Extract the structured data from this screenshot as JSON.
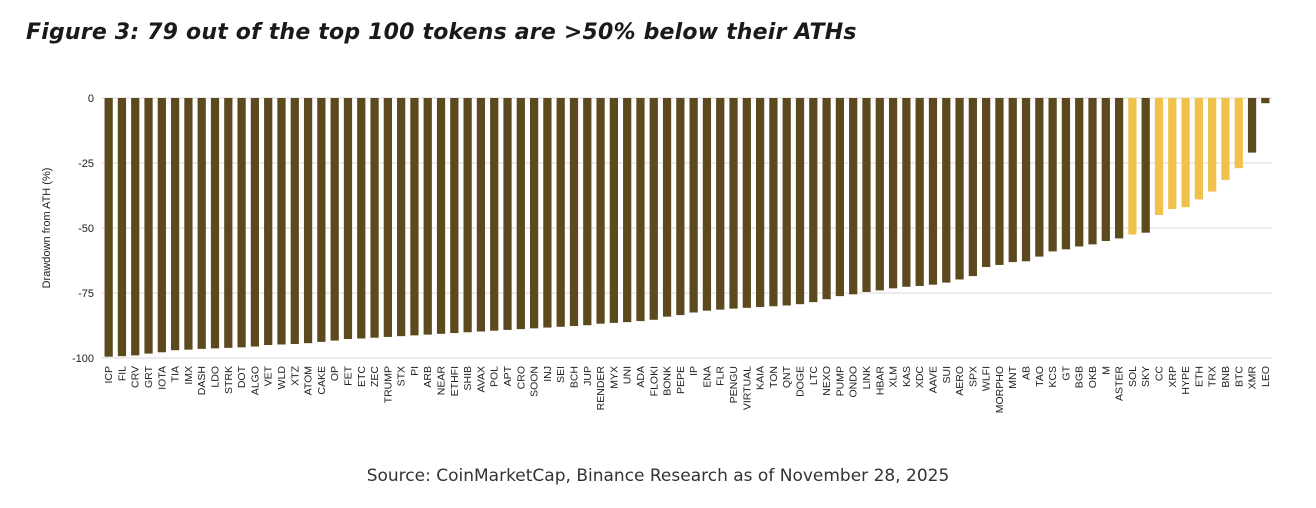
{
  "figure": {
    "title": "Figure 3: 79 out of the top 100 tokens are >50% below their ATHs",
    "source": "Source: CoinMarketCap, Binance Research as of November 28, 2025"
  },
  "colors": {
    "below_50": "#5c4a1e",
    "above_50": "#f0c24b",
    "grid": "#d9d9d9",
    "background": "#ffffff"
  },
  "chart_data": {
    "type": "bar",
    "title": "",
    "xlabel": "",
    "ylabel": "Drawdown from ATH (%)",
    "ylim": [
      -100,
      0
    ],
    "yticks": [
      0,
      -25,
      -50,
      -75,
      -100
    ],
    "grid": true,
    "categories": [
      "ICP",
      "FIL",
      "CRV",
      "GRT",
      "IOTA",
      "TIA",
      "IMX",
      "DASH",
      "LDO",
      "STRK",
      "DOT",
      "ALGO",
      "VET",
      "WLD",
      "XTZ",
      "ATOM",
      "CAKE",
      "OP",
      "FET",
      "ETC",
      "ZEC",
      "TRUMP",
      "STX",
      "PI",
      "ARB",
      "NEAR",
      "ETHFI",
      "SHIB",
      "AVAX",
      "POL",
      "APT",
      "CRO",
      "SOON",
      "INJ",
      "SEI",
      "BCH",
      "JUP",
      "RENDER",
      "MYX",
      "UNI",
      "ADA",
      "FLOKI",
      "BONK",
      "PEPE",
      "IP",
      "ENA",
      "FLR",
      "PENGU",
      "VIRTUAL",
      "KAIA",
      "TON",
      "QNT",
      "DOGE",
      "LTC",
      "NEXO",
      "PUMP",
      "ONDO",
      "LINK",
      "HBAR",
      "XLM",
      "KAS",
      "XDC",
      "AAVE",
      "SUI",
      "AERO",
      "SPX",
      "WLFI",
      "MORPHO",
      "MNT",
      "AB",
      "TAO",
      "KCS",
      "GT",
      "BGB",
      "OKB",
      "M",
      "ASTER",
      "SOL",
      "SKY",
      "CC",
      "XRP",
      "HYPE",
      "ETH",
      "TRX",
      "BNB",
      "BTC",
      "XMR",
      "LEO"
    ],
    "series": [
      {
        "values": [
          -99.5,
          -99.3,
          -99.0,
          -98.3,
          -97.8,
          -97.0,
          -96.8,
          -96.5,
          -96.3,
          -96.1,
          -95.9,
          -95.6,
          -95.0,
          -94.8,
          -94.6,
          -94.3,
          -93.8,
          -93.3,
          -92.7,
          -92.5,
          -92.2,
          -91.9,
          -91.6,
          -91.3,
          -91.0,
          -90.7,
          -90.4,
          -90.1,
          -89.8,
          -89.5,
          -89.2,
          -88.9,
          -88.6,
          -88.3,
          -88.0,
          -87.7,
          -87.4,
          -86.8,
          -86.5,
          -86.2,
          -85.8,
          -85.3,
          -84.1,
          -83.5,
          -82.5,
          -81.8,
          -81.4,
          -81.0,
          -80.7,
          -80.4,
          -80.1,
          -79.8,
          -79.3,
          -78.5,
          -77.4,
          -76.2,
          -75.5,
          -74.6,
          -74.0,
          -73.2,
          -72.6,
          -72.3,
          -71.8,
          -71.0,
          -69.8,
          -68.5,
          -65.0,
          -64.2,
          -63.1,
          -62.8,
          -61.0,
          -59.0,
          -58.2,
          -57.1,
          -56.3,
          -55.0,
          -54.0,
          -52.5,
          -51.8,
          -45.0,
          -42.7,
          -42.0,
          -39.0,
          -36.0,
          -31.5,
          -27.0,
          -21.0,
          -2.0
        ],
        "highlight": [
          false,
          false,
          false,
          false,
          false,
          false,
          false,
          false,
          false,
          false,
          false,
          false,
          false,
          false,
          false,
          false,
          false,
          false,
          false,
          false,
          false,
          false,
          false,
          false,
          false,
          false,
          false,
          false,
          false,
          false,
          false,
          false,
          false,
          false,
          false,
          false,
          false,
          false,
          false,
          false,
          false,
          false,
          false,
          false,
          false,
          false,
          false,
          false,
          false,
          false,
          false,
          false,
          false,
          false,
          false,
          false,
          false,
          false,
          false,
          false,
          false,
          false,
          false,
          false,
          false,
          false,
          false,
          false,
          false,
          false,
          false,
          false,
          false,
          false,
          false,
          false,
          false,
          true,
          false,
          true,
          true,
          true,
          true,
          true,
          true,
          true,
          false,
          false
        ]
      }
    ]
  }
}
